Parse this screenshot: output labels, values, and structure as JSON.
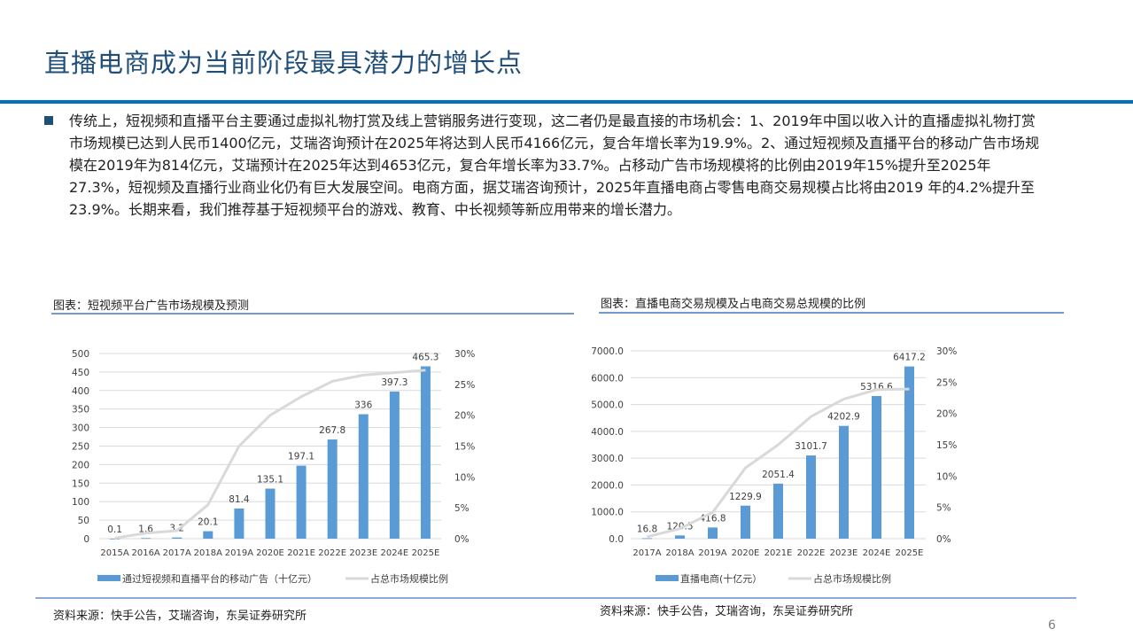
{
  "page": {
    "title": "直播电商成为当前阶段最具潜力的增长点",
    "body_text": "传统上，短视频和直播平台主要通过虚拟礼物打赏及线上营销服务进行变现，这二者仍是最直接的市场机会：1、2019年中国以收入计的直播虚拟礼物打赏市场规模已达到人民币1400亿元，艾瑞咨询预计在2025年将达到人民币4166亿元，复合年增长率为19.9%。2、通过短视频及直播平台的移动广告市场规模在2019年为814亿元，艾瑞预计在2025年达到4653亿元，复合年增长率为33.7%。占移动广告市场规模将的比例由2019年15%提升至2025年27.3%，短视频及直播行业商业化仍有巨大发展空间。电商方面，据艾瑞咨询预计，2025年直播电商占零售电商交易规模占比将由2019 年的4.2%提升至23.9%。长期来看，我们推荐基于短视频平台的游戏、教育、中长视频等新应用带来的增长潜力。",
    "page_number": "6",
    "colors": {
      "title": "#1f4e79",
      "rule": "#0070c0",
      "bar": "#5b9bd5",
      "line": "#d9d9d9"
    }
  },
  "left": {
    "caption": "图表：短视频平台广告市场规模及预测",
    "source": "资料来源：快手公告，艾瑞咨询，东吴证券研究所"
  },
  "right": {
    "caption": "图表：直播电商交易规模及占电商交易总规模的比例",
    "source": "资料来源：快手公告，艾瑞咨询，东吴证券研究所"
  },
  "chart_data": [
    {
      "type": "bar",
      "title": "短视频平台广告市场规模及预测",
      "categories": [
        "2015A",
        "2016A",
        "2017A",
        "2018A",
        "2019A",
        "2020E",
        "2021E",
        "2022E",
        "2023E",
        "2024E",
        "2025E"
      ],
      "series": [
        {
          "name": "通过短视频和直播平台的移动广告（十亿元）",
          "type": "bar",
          "axis": "left",
          "values": [
            0.1,
            1.6,
            3.2,
            20.1,
            81.4,
            135.1,
            197.1,
            267.8,
            336,
            397.3,
            465.3
          ],
          "labels": [
            "0.1",
            "1.6",
            "3.2",
            "20.1",
            "81.4",
            "135.1",
            "197.1",
            "267.8",
            "336",
            "397.3",
            "465.3"
          ]
        },
        {
          "name": "占总市场规模比例",
          "type": "line",
          "axis": "right",
          "values": [
            0.1,
            0.9,
            1.3,
            5.5,
            15.0,
            20.0,
            23.0,
            25.5,
            26.5,
            26.9,
            27.3
          ]
        }
      ],
      "y_left": {
        "ticks": [
          "0",
          "50",
          "100",
          "150",
          "200",
          "250",
          "300",
          "350",
          "400",
          "450",
          "500"
        ],
        "ylim": [
          0,
          500
        ]
      },
      "y_right": {
        "ticks": [
          "0%",
          "5%",
          "10%",
          "15%",
          "20%",
          "25%",
          "30%"
        ],
        "ylim": [
          0,
          30
        ]
      },
      "grid": true,
      "legend_position": "bottom"
    },
    {
      "type": "bar",
      "title": "直播电商交易规模及占电商交易总规模的比例",
      "categories": [
        "2017A",
        "2018A",
        "2019A",
        "2020E",
        "2021E",
        "2022E",
        "2023E",
        "2024E",
        "2025E"
      ],
      "series": [
        {
          "name": "直播电商(十亿元）",
          "type": "bar",
          "axis": "left",
          "values": [
            16.8,
            120.5,
            416.8,
            1229.9,
            2051.4,
            3101.7,
            4202.9,
            5316.6,
            6417.2
          ],
          "labels": [
            "16.8",
            "120.5",
            "416.8",
            "1229.9",
            "2051.4",
            "3101.7",
            "4202.9",
            "5316.6",
            "6417.2"
          ]
        },
        {
          "name": "占总市场规模比例",
          "type": "line",
          "axis": "right",
          "values": [
            0.3,
            1.6,
            4.2,
            11.3,
            15.0,
            19.5,
            22.3,
            23.8,
            23.9
          ]
        }
      ],
      "y_left": {
        "ticks": [
          "0.0",
          "1000.0",
          "2000.0",
          "3000.0",
          "4000.0",
          "5000.0",
          "6000.0",
          "7000.0"
        ],
        "ylim": [
          0,
          7000
        ]
      },
      "y_right": {
        "ticks": [
          "0%",
          "5%",
          "10%",
          "15%",
          "20%",
          "25%",
          "30%"
        ],
        "ylim": [
          0,
          30
        ]
      },
      "grid": true,
      "legend_position": "bottom"
    }
  ]
}
